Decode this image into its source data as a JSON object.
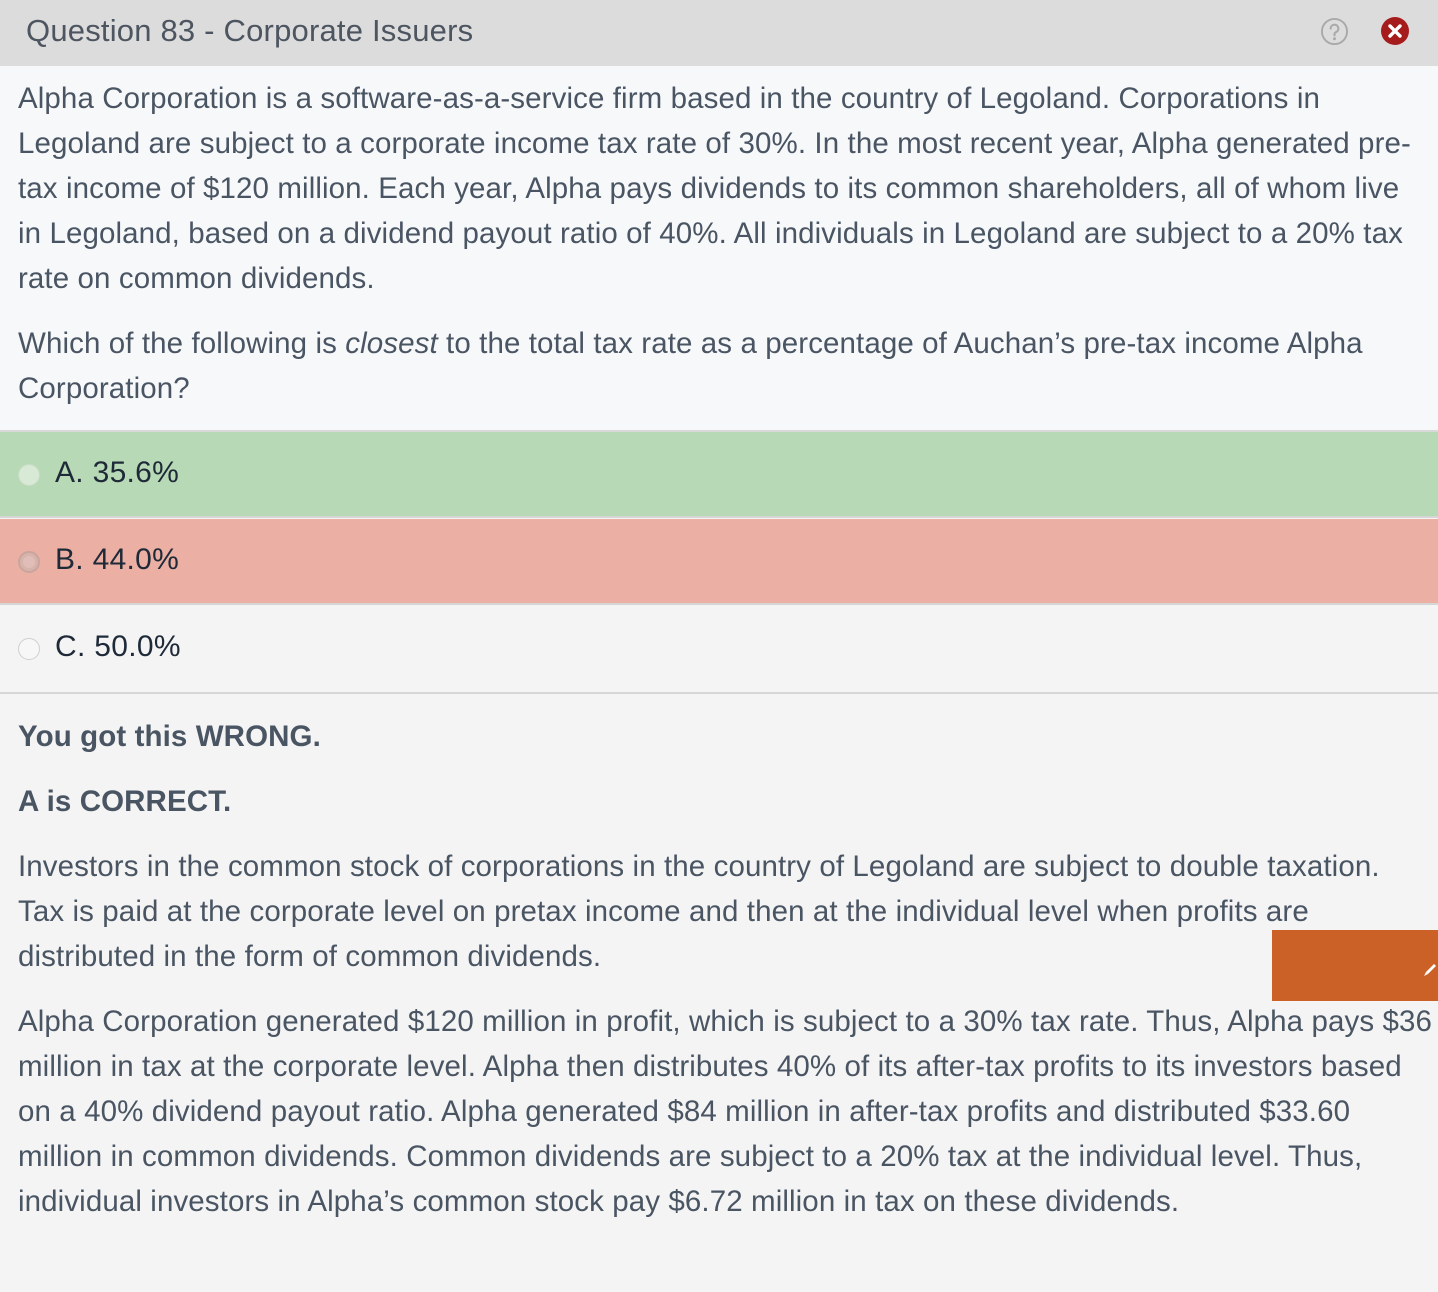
{
  "window": {
    "title": "Question 83 - Corporate Issuers",
    "help_icon": "help-circle-icon",
    "close_icon": "close-circle-icon",
    "close_color": "#a61c1c"
  },
  "question": {
    "paragraph_1": "Alpha Corporation is a software-as-a-service firm based in the country of Legoland.  Corporations in Legoland are subject to a corporate income tax rate of 30%.  In the most recent year, Alpha generated pre-tax income of $120 million. Each year, Alpha pays dividends to its common shareholders, all of whom live in Legoland, based on a dividend payout ratio of 40%.  All individuals in Legoland are subject to a 20% tax rate on common dividends.",
    "prompt_before": "Which of the following is ",
    "prompt_emphasis": "closest",
    "prompt_after": " to the total tax rate as a percentage of Auchan’s pre-tax income Alpha Corporation?"
  },
  "options": [
    {
      "label": "A. 35.6%",
      "state": "correct",
      "color": "#b7d9b5"
    },
    {
      "label": "B. 44.0%",
      "state": "selected-wrong",
      "color": "#ebafa3"
    },
    {
      "label": "C. 50.0%",
      "state": "unselected",
      "color": "#f4f4f4"
    }
  ],
  "explanation": {
    "result": "You got this WRONG.",
    "correct_answer": "A is CORRECT.",
    "paragraph_1": "Investors in the common stock of corporations in the country of Legoland are subject to double taxation.  Tax is paid at the corporate level on pretax income and then at the individual level when profits are distributed in the form of common dividends.",
    "paragraph_2": "Alpha Corporation generated $120 million in profit, which is subject to a 30% tax rate.  Thus, Alpha pays $36 million in tax at the corporate level.  Alpha then distributes 40% of its after-tax profits to its investors based on a 40% dividend payout ratio.  Alpha generated $84 million in after-tax profits and distributed $33.60 million in common dividends.  Common dividends are subject to a 20% tax at the individual level.  Thus, individual investors in Alpha’s common stock pay $6.72 million in tax on these dividends."
  },
  "side_tab": {
    "icon": "pencil-icon",
    "color": "#cb6126"
  }
}
